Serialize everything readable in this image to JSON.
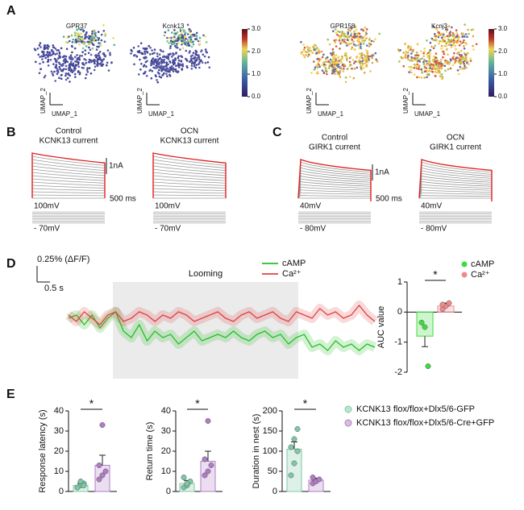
{
  "panel_labels": [
    "A",
    "B",
    "C",
    "D",
    "E"
  ],
  "umap": {
    "plots": [
      {
        "title": "GPR37"
      },
      {
        "title": "Kcnk13"
      },
      {
        "title": "GPR158"
      },
      {
        "title": "Kcnj3"
      }
    ],
    "x_label": "UMAP_1",
    "y_label": "UMAP_2",
    "colorbars": [
      {
        "ticks": [
          {
            "value": 3,
            "label": "3.0"
          },
          {
            "value": 2,
            "label": "2.0"
          },
          {
            "value": 1,
            "label": "1.0"
          },
          {
            "value": 0,
            "label": "0.0"
          }
        ]
      },
      {
        "ticks": [
          {
            "value": 3,
            "label": "3.0"
          },
          {
            "value": 2,
            "label": "2.0"
          },
          {
            "value": 1,
            "label": "1.0"
          },
          {
            "value": 0,
            "label": "0.0"
          }
        ]
      }
    ]
  },
  "ephys": {
    "B": {
      "traces": [
        {
          "condition": "Control",
          "current": "KCNK13 current"
        },
        {
          "condition": "OCN",
          "current": "KCNK13 current"
        }
      ],
      "scale_current": "1nA",
      "scale_time": "500 ms",
      "voltage_high": "100mV",
      "voltage_low": "- 70mV"
    },
    "C": {
      "traces": [
        {
          "condition": "Control",
          "current": "GIRK1 current"
        },
        {
          "condition": "OCN",
          "current": "GIRK1 current"
        }
      ],
      "scale_current": "1nA",
      "scale_time": "500 ms",
      "voltage_high": "40mV",
      "voltage_low": "- 80mV"
    }
  },
  "legend_E": [
    "KCNK13 flox/flox+Dlx5/6-GFP",
    "KCNK13 flox/flox+Dlx5/6-Cre+GFP"
  ],
  "chart_data": [
    {
      "type": "line",
      "scalebar_y": "0.25% (ΔF/F)",
      "scalebar_x": "0.5 s",
      "annotation": "Looming",
      "series": [
        {
          "name": "cAMP",
          "color": "#22c022",
          "values": [
            0,
            0.05,
            -0.1,
            0.05,
            -0.15,
            0,
            0.1,
            -0.2,
            -0.3,
            -0.1,
            -0.35,
            -0.2,
            -0.3,
            -0.25,
            -0.4,
            -0.3,
            -0.2,
            -0.35,
            -0.3,
            -0.25,
            -0.3,
            -0.2,
            -0.3,
            -0.35,
            -0.25,
            -0.2,
            -0.3,
            -0.25,
            -0.4,
            -0.3,
            -0.25,
            -0.45,
            -0.4,
            -0.5,
            -0.35,
            -0.45,
            -0.4,
            -0.5,
            -0.4,
            -0.45
          ]
        },
        {
          "name": "Ca²⁺",
          "color": "#e04040",
          "values": [
            0.05,
            -0.05,
            0.1,
            0,
            -0.1,
            0.05,
            0.1,
            -0.05,
            0,
            0.1,
            0.05,
            -0.05,
            0.05,
            0,
            0.1,
            0.05,
            -0.05,
            0,
            0.05,
            0.1,
            0,
            -0.05,
            0.05,
            0.1,
            0,
            0.05,
            0.1,
            0,
            -0.05,
            0.1,
            0.05,
            0,
            0.15,
            0.05,
            0.1,
            0,
            0.05,
            0.2,
            0.05,
            -0.05
          ]
        }
      ]
    },
    {
      "type": "bar",
      "y_label": "AUC value",
      "annotation": "*",
      "ylim": [
        -2,
        1
      ],
      "yticks": [
        1,
        0,
        -1,
        -2
      ],
      "series": [
        {
          "name": "cAMP",
          "color": "#3ddc3d",
          "values": [
            -0.8
          ],
          "errors": [
            0.35
          ],
          "points": [
            -0.35,
            -0.5,
            -1.8
          ]
        },
        {
          "name": "Ca²⁺",
          "color": "#f08a8a",
          "values": [
            0.2
          ],
          "errors": [
            0.1
          ],
          "points": [
            0.1,
            0.2,
            0.3,
            0.25
          ]
        }
      ]
    },
    {
      "type": "bar",
      "y_label": "Response latency (s)",
      "annotation": "*",
      "ylim": [
        0,
        40
      ],
      "yticks": [
        0,
        10,
        20,
        30,
        40
      ],
      "series": [
        {
          "color": "#7cc9a6",
          "values": [
            3
          ],
          "errors": [
            1
          ],
          "points": [
            2,
            3,
            4,
            2,
            5,
            3
          ]
        },
        {
          "color": "#b07cc6",
          "values": [
            13
          ],
          "errors": [
            5
          ],
          "points": [
            6,
            8,
            10,
            13,
            33
          ]
        }
      ]
    },
    {
      "type": "bar",
      "y_label": "Return time (s)",
      "annotation": "*",
      "ylim": [
        0,
        40
      ],
      "yticks": [
        0,
        10,
        20,
        30,
        40
      ],
      "series": [
        {
          "color": "#7cc9a6",
          "values": [
            4
          ],
          "errors": [
            1.5
          ],
          "points": [
            2,
            3,
            5,
            7,
            4
          ]
        },
        {
          "color": "#b07cc6",
          "values": [
            15
          ],
          "errors": [
            5
          ],
          "points": [
            8,
            10,
            13,
            16,
            35
          ]
        }
      ]
    },
    {
      "type": "bar",
      "y_label": "Duration in nest (s)",
      "annotation": "*",
      "ylim": [
        0,
        200
      ],
      "yticks": [
        0,
        50,
        100,
        150,
        200
      ],
      "series": [
        {
          "color": "#7cc9a6",
          "values": [
            105
          ],
          "errors": [
            18
          ],
          "points": [
            40,
            70,
            100,
            110,
            130,
            155
          ]
        },
        {
          "color": "#b07cc6",
          "values": [
            28
          ],
          "errors": [
            5
          ],
          "points": [
            20,
            25,
            30,
            35
          ]
        }
      ]
    }
  ]
}
